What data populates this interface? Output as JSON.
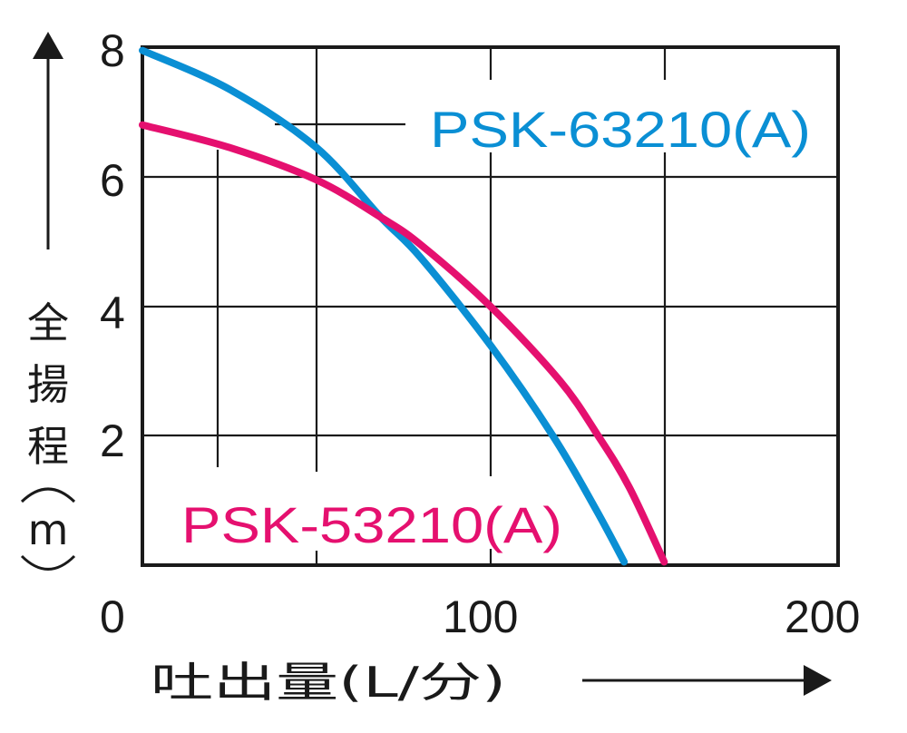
{
  "chart_data": {
    "type": "line",
    "title": "",
    "xlabel": "吐出量(L/分)",
    "ylabel": "全揚程(m)",
    "xlim": [
      0,
      200
    ],
    "ylim": [
      0,
      8
    ],
    "x_ticks": [
      "0",
      "100",
      "200"
    ],
    "y_ticks": [
      "2",
      "4",
      "6",
      "8"
    ],
    "grid": true,
    "legend_position": "inline labels",
    "series": [
      {
        "name": "PSK-63210(A)",
        "color": "#0a8fd4",
        "x": [
          0,
          25,
          50,
          68.6,
          80,
          100,
          118,
          130,
          138.5
        ],
        "y": [
          7.95,
          7.35,
          6.45,
          5.37,
          4.75,
          3.4,
          2.0,
          0.9,
          0.05
        ]
      },
      {
        "name": "PSK-53210(A)",
        "color": "#e5106f",
        "x": [
          0,
          25,
          50,
          68.6,
          80,
          100,
          120,
          131,
          140,
          150
        ],
        "y": [
          6.8,
          6.45,
          5.95,
          5.37,
          4.95,
          4.0,
          2.85,
          2.0,
          1.2,
          0.05
        ]
      }
    ]
  },
  "labels": {
    "series_blue": "PSK-63210(A)",
    "series_pink": "PSK-53210(A)",
    "y_axis_title_chars": [
      "全",
      "揚",
      "程",
      "(",
      "m",
      ")"
    ],
    "x_axis_title": "吐出量(L/分)",
    "tick_y_8": "8",
    "tick_y_6": "6",
    "tick_y_4": "4",
    "tick_y_2": "2",
    "tick_x_0": "0",
    "tick_x_100": "100",
    "tick_x_200": "200"
  }
}
